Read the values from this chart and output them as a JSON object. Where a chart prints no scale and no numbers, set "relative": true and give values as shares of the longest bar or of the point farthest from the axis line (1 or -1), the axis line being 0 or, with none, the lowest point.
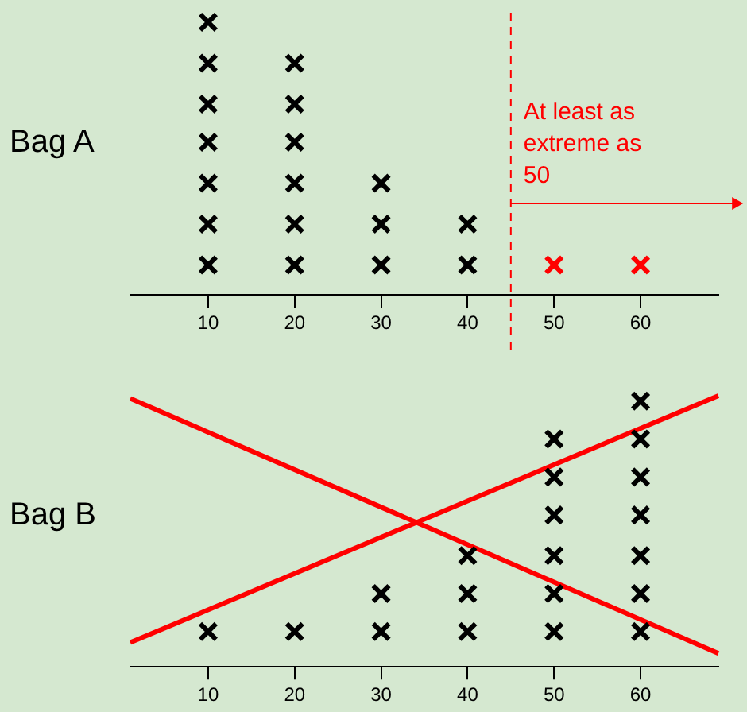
{
  "chart_data": [
    {
      "type": "scatter",
      "ylabel": "Bag A",
      "relative": true,
      "marker": "cross",
      "tick_labels": "x",
      "xlim": [
        1,
        69
      ],
      "xticks": [
        10,
        20,
        30,
        40,
        50,
        60
      ],
      "series": [
        {
          "color": "#000000",
          "x": [
            10,
            10,
            10,
            10,
            10,
            10,
            10,
            20,
            20,
            20,
            20,
            20,
            20,
            30,
            30,
            30,
            40,
            40
          ],
          "values": [
            0.11,
            0.26,
            0.41,
            0.56,
            0.7,
            0.85,
            1,
            0.11,
            0.26,
            0.41,
            0.56,
            0.7,
            0.85,
            0.11,
            0.26,
            0.41,
            0.11,
            0.26
          ]
        },
        {
          "color": "#ff0000",
          "x": [
            50,
            60
          ],
          "values": [
            0.11,
            0.11
          ]
        }
      ],
      "ref_lines": [
        {
          "axis": "x",
          "value": 45,
          "label": "At least as extreme as 50",
          "color": "#ff0000",
          "line_style": "dashed"
        }
      ]
    },
    {
      "type": "scatter",
      "ylabel": "Bag B",
      "relative": true,
      "marker": "cross",
      "tick_labels": "x",
      "xlim": [
        1,
        69
      ],
      "xticks": [
        10,
        20,
        30,
        40,
        50,
        60
      ],
      "series": [
        {
          "color": "#000000",
          "x": [
            10,
            20,
            30,
            30,
            40,
            40,
            40,
            50,
            50,
            50,
            50,
            50,
            50,
            60,
            60,
            60,
            60,
            60,
            60,
            60
          ],
          "values": [
            0.13,
            0.13,
            0.13,
            0.27,
            0.13,
            0.27,
            0.41,
            0.13,
            0.27,
            0.41,
            0.56,
            0.7,
            0.84,
            0.13,
            0.27,
            0.41,
            0.56,
            0.7,
            0.84,
            0.98
          ]
        },
        {
          "type": "line",
          "marker": "none",
          "color": "#ff0000",
          "x": [
            1,
            69
          ],
          "values": [
            0.99,
            0.05
          ]
        },
        {
          "type": "line",
          "marker": "none",
          "color": "#ff0000",
          "x": [
            1,
            69
          ],
          "values": [
            0.09,
            1
          ]
        }
      ]
    }
  ]
}
